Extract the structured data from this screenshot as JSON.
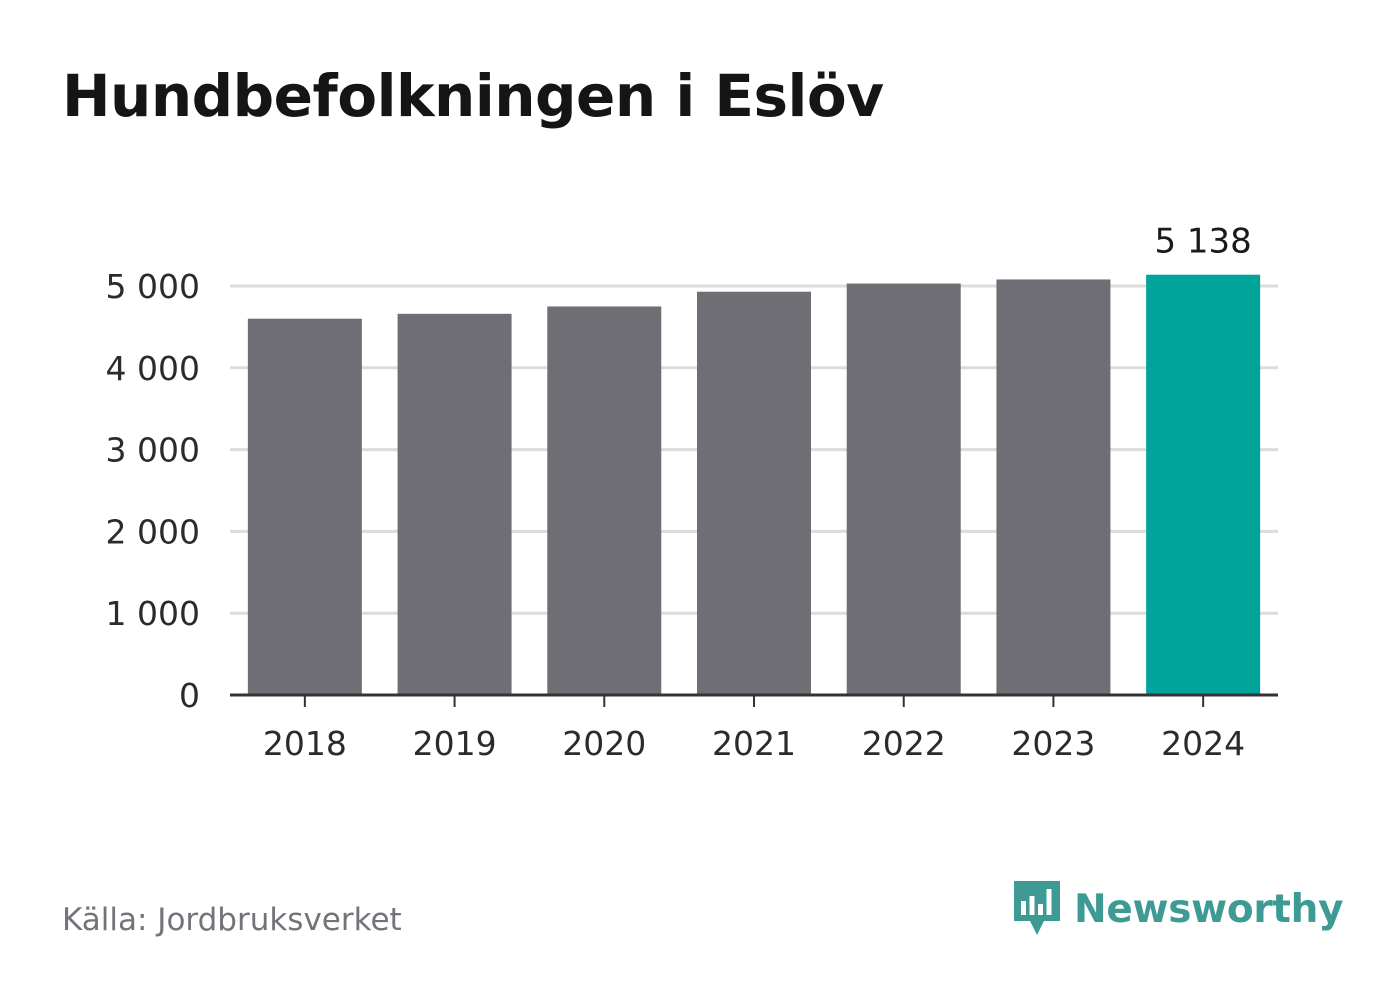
{
  "title": "Hundbefolkningen i Eslöv",
  "source": "Källa: Jordbruksverket",
  "brand": {
    "name": "Newsworthy",
    "icon": "newsworthy-logo-icon",
    "color": "#3d9b94"
  },
  "colors": {
    "bar": "#6f6e74",
    "highlight": "#00a49a",
    "grid": "#dcdcdc",
    "axis": "#333333"
  },
  "chart_data": {
    "type": "bar",
    "title": "Hundbefolkningen i Eslöv",
    "categories": [
      "2018",
      "2019",
      "2020",
      "2021",
      "2022",
      "2023",
      "2024"
    ],
    "values": [
      4600,
      4660,
      4750,
      4930,
      5030,
      5080,
      5138
    ],
    "highlight_index": 6,
    "data_labels": [
      {
        "index": 6,
        "text": "5 138"
      }
    ],
    "yticks": [
      {
        "value": 0,
        "label": "0"
      },
      {
        "value": 1000,
        "label": "1 000"
      },
      {
        "value": 2000,
        "label": "2 000"
      },
      {
        "value": 3000,
        "label": "3 000"
      },
      {
        "value": 4000,
        "label": "4 000"
      },
      {
        "value": 5000,
        "label": "5 000"
      }
    ],
    "ylim": [
      0,
      5138
    ],
    "xlabel": "",
    "ylabel": "",
    "grid": true
  }
}
